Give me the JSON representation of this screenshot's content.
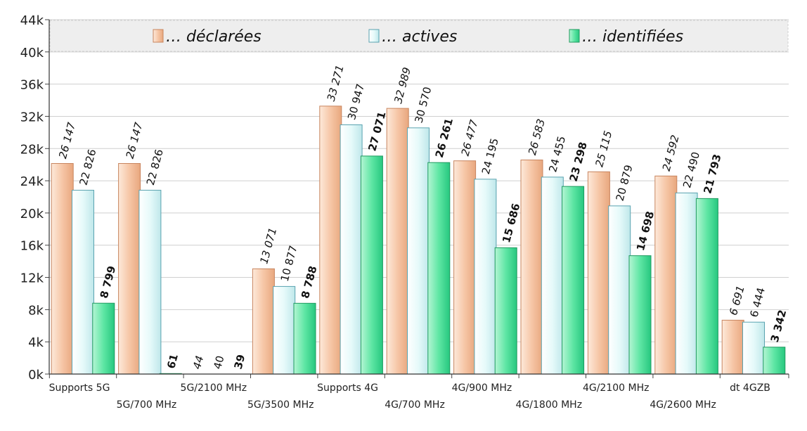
{
  "chart_data": {
    "type": "bar",
    "categories": [
      "Supports 5G",
      "5G/700 MHz",
      "5G/2100 MHz",
      "5G/3500 MHz",
      "Supports 4G",
      "4G/700 MHz",
      "4G/900 MHz",
      "4G/1800 MHz",
      "4G/2100 MHz",
      "4G/2600 MHz",
      "dt 4GZB"
    ],
    "series": [
      {
        "name": "… déclarées",
        "color": "#f6c6a6",
        "label_style": "italic",
        "values": [
          26147,
          26147,
          null,
          13071,
          33271,
          32989,
          26477,
          26583,
          25115,
          24592,
          6691
        ],
        "labels": [
          "26 147",
          "26 147",
          "44",
          "13 071",
          "33 271",
          "32 989",
          "26 477",
          "26 583",
          "25 115",
          "24 592",
          "6 691"
        ]
      },
      {
        "name": "… actives",
        "color": "#e6fafa",
        "label_style": "normal",
        "values": [
          22826,
          22826,
          null,
          10877,
          30947,
          30570,
          24195,
          24455,
          20879,
          22490,
          6444
        ],
        "labels": [
          "22 826",
          "22 826",
          "40",
          "10 877",
          "30 947",
          "30 570",
          "24 195",
          "24 455",
          "20 879",
          "22 490",
          "6 444"
        ]
      },
      {
        "name": "… identifiées",
        "color": "#5ee6a4",
        "label_style": "bold",
        "values": [
          8799,
          61,
          null,
          8788,
          27071,
          26261,
          15686,
          23298,
          14698,
          21793,
          3342
        ],
        "labels": [
          "8 799",
          "61",
          "39",
          "8 788",
          "27 071",
          "26 261",
          "15 686",
          "23 298",
          "14 698",
          "21 793",
          "3 342"
        ]
      }
    ],
    "y_ticks": [
      "0k",
      "4k",
      "8k",
      "12k",
      "16k",
      "20k",
      "24k",
      "28k",
      "32k",
      "36k",
      "40k",
      "44k"
    ],
    "ylim": [
      0,
      44000
    ],
    "grid": true,
    "legend_position": "top"
  }
}
